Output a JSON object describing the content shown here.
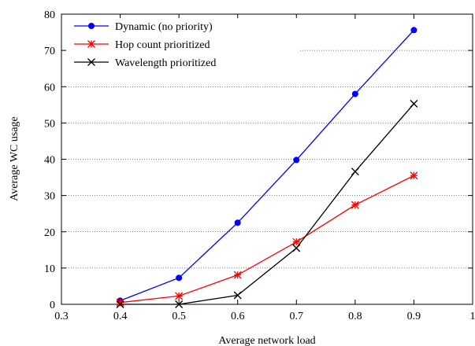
{
  "chart_data": {
    "type": "line",
    "xlabel": "Average network load",
    "ylabel": "Average WC usage",
    "xlim": [
      0.3,
      1
    ],
    "ylim": [
      0,
      80
    ],
    "x_ticks": [
      "0.3",
      "0.4",
      "0.5",
      "0.6",
      "0.7",
      "0.8",
      "0.9",
      "1"
    ],
    "y_ticks": [
      "0",
      "10",
      "20",
      "30",
      "40",
      "50",
      "60",
      "70",
      "80"
    ],
    "grid": "horizontal dotted",
    "legend_position": "top-left",
    "x": [
      0.4,
      0.5,
      0.6,
      0.7,
      0.8,
      0.9
    ],
    "series": [
      {
        "name": "Dynamic (no priority)",
        "color": "#0000ff",
        "marker": "circle",
        "values": [
          1.0,
          7.3,
          22.5,
          39.8,
          58.0,
          75.6
        ]
      },
      {
        "name": "Hop count prioritized",
        "color": "#ff0000",
        "marker": "asterisk",
        "values": [
          0.5,
          2.3,
          8.1,
          17.2,
          27.4,
          35.5
        ]
      },
      {
        "name": "Wavelength prioritized",
        "color": "#000000",
        "marker": "x",
        "values": [
          0.0,
          0.0,
          2.5,
          15.5,
          36.6,
          55.3
        ]
      }
    ]
  }
}
